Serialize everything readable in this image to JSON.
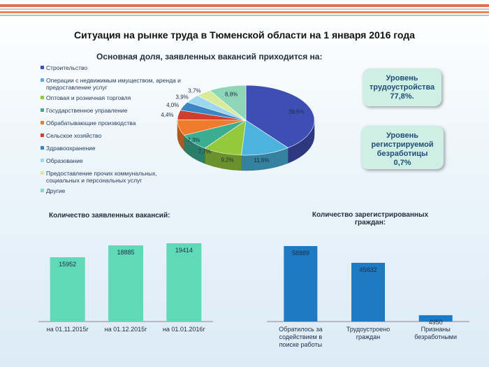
{
  "title": "Ситуация на рынке труда в Тюменской области на 1 января 2016 года",
  "callouts": {
    "employment_label": "Уровень трудоустройства",
    "employment_value": "77,8%.",
    "unemployment_label": "Уровень регистрируемой безработицы",
    "unemployment_value": "0,7%"
  },
  "chart_data": [
    {
      "type": "pie",
      "title": "Основная доля, заявленных вакансий приходится на:",
      "categories": [
        "Строительство",
        "Операции с недвижимым имуществом, аренда и предоставление услуг",
        "Оптовая и розничная торговля",
        "Государственное управление",
        "Обрабатывающие производства",
        "Сельское хозяйство",
        "Здравоохранение",
        "Образование",
        "Предоставление прочих коммунальных, социальных и персональных услуг",
        "Другие"
      ],
      "values": [
        39.5,
        11.6,
        9.2,
        7.7,
        7.3,
        4.4,
        4.0,
        3.9,
        3.7,
        8.8
      ],
      "labels": [
        "39,5",
        "11,6",
        "9,2",
        "7,7",
        "7,3",
        "4,4",
        "4,0",
        "3,9",
        "3,7",
        "8,8"
      ],
      "colors": [
        "#3d4fb3",
        "#4bb3dd",
        "#94c93d",
        "#3bae92",
        "#f07b2e",
        "#cf3f2f",
        "#3a86c4",
        "#9cd7ef",
        "#d8eb9a",
        "#8dd6b8"
      ]
    },
    {
      "type": "bar",
      "title": "Количество заявленных вакансий:",
      "categories": [
        "на 01.11.2015г",
        "на 01.12.2015г",
        "на 01.01.2016г"
      ],
      "values": [
        15952,
        18885,
        19414
      ],
      "color": "#5fd9b8"
    },
    {
      "type": "bar",
      "title": "Количество зарегистрированных граждан:",
      "categories": [
        "Обратилось за содействием в поиске работы",
        "Трудоустроено граждан",
        "Признаны безработными"
      ],
      "values": [
        58889,
        45832,
        4950
      ],
      "color": "#1f7ac4"
    }
  ]
}
